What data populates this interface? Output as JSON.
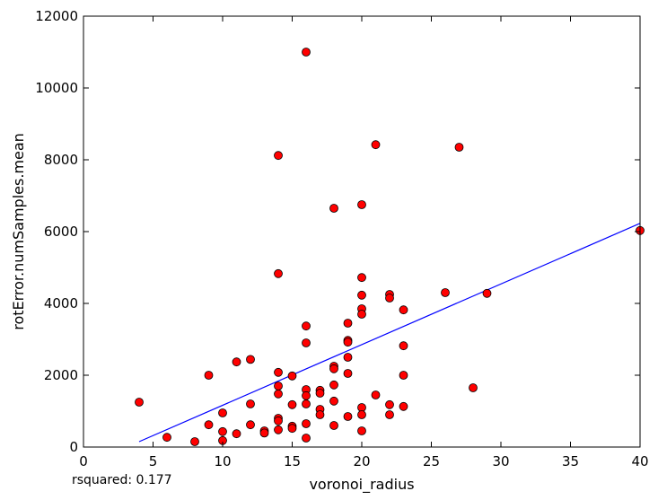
{
  "chart_data": {
    "type": "scatter",
    "title": "",
    "xlabel": "voronoi_radius",
    "ylabel": "rotError.numSamples.mean",
    "xlim": [
      0,
      40
    ],
    "ylim": [
      0,
      12000
    ],
    "xticks": [
      0,
      5,
      10,
      15,
      20,
      25,
      30,
      35,
      40
    ],
    "yticks": [
      0,
      2000,
      4000,
      6000,
      8000,
      10000,
      12000
    ],
    "grid": false,
    "legend": "none",
    "point_color": "#ff0000",
    "line_color": "#0000ff",
    "fit_line": {
      "x": [
        4,
        40
      ],
      "y": [
        150,
        6230
      ]
    },
    "points": [
      {
        "x": 4,
        "y": 1250
      },
      {
        "x": 6,
        "y": 270
      },
      {
        "x": 8,
        "y": 150
      },
      {
        "x": 9,
        "y": 2000
      },
      {
        "x": 9,
        "y": 620
      },
      {
        "x": 10,
        "y": 950
      },
      {
        "x": 10,
        "y": 430
      },
      {
        "x": 10,
        "y": 180
      },
      {
        "x": 11,
        "y": 2370
      },
      {
        "x": 11,
        "y": 370
      },
      {
        "x": 12,
        "y": 2440
      },
      {
        "x": 12,
        "y": 1200
      },
      {
        "x": 12,
        "y": 620
      },
      {
        "x": 13,
        "y": 450
      },
      {
        "x": 13,
        "y": 390
      },
      {
        "x": 14,
        "y": 8120
      },
      {
        "x": 14,
        "y": 4830
      },
      {
        "x": 14,
        "y": 2080
      },
      {
        "x": 14,
        "y": 1700
      },
      {
        "x": 14,
        "y": 1480
      },
      {
        "x": 14,
        "y": 800
      },
      {
        "x": 14,
        "y": 730
      },
      {
        "x": 14,
        "y": 480
      },
      {
        "x": 15,
        "y": 1980
      },
      {
        "x": 15,
        "y": 1180
      },
      {
        "x": 15,
        "y": 580
      },
      {
        "x": 15,
        "y": 520
      },
      {
        "x": 16,
        "y": 11000
      },
      {
        "x": 16,
        "y": 3370
      },
      {
        "x": 16,
        "y": 2900
      },
      {
        "x": 16,
        "y": 1600
      },
      {
        "x": 16,
        "y": 1430
      },
      {
        "x": 16,
        "y": 1200
      },
      {
        "x": 16,
        "y": 650
      },
      {
        "x": 16,
        "y": 250
      },
      {
        "x": 17,
        "y": 1580
      },
      {
        "x": 17,
        "y": 1500
      },
      {
        "x": 17,
        "y": 1050
      },
      {
        "x": 17,
        "y": 900
      },
      {
        "x": 18,
        "y": 6650
      },
      {
        "x": 18,
        "y": 2250
      },
      {
        "x": 18,
        "y": 2180
      },
      {
        "x": 18,
        "y": 1730
      },
      {
        "x": 18,
        "y": 1280
      },
      {
        "x": 18,
        "y": 600
      },
      {
        "x": 19,
        "y": 3450
      },
      {
        "x": 19,
        "y": 2970
      },
      {
        "x": 19,
        "y": 2920
      },
      {
        "x": 19,
        "y": 2500
      },
      {
        "x": 19,
        "y": 2050
      },
      {
        "x": 19,
        "y": 850
      },
      {
        "x": 20,
        "y": 6750
      },
      {
        "x": 20,
        "y": 4720
      },
      {
        "x": 20,
        "y": 4230
      },
      {
        "x": 20,
        "y": 3850
      },
      {
        "x": 20,
        "y": 3700
      },
      {
        "x": 20,
        "y": 1100
      },
      {
        "x": 20,
        "y": 900
      },
      {
        "x": 20,
        "y": 450
      },
      {
        "x": 21,
        "y": 8420
      },
      {
        "x": 21,
        "y": 1450
      },
      {
        "x": 22,
        "y": 4250
      },
      {
        "x": 22,
        "y": 4150
      },
      {
        "x": 22,
        "y": 1180
      },
      {
        "x": 22,
        "y": 900
      },
      {
        "x": 23,
        "y": 3820
      },
      {
        "x": 23,
        "y": 2820
      },
      {
        "x": 23,
        "y": 2000
      },
      {
        "x": 23,
        "y": 1130
      },
      {
        "x": 26,
        "y": 4300
      },
      {
        "x": 27,
        "y": 8350
      },
      {
        "x": 28,
        "y": 1650
      },
      {
        "x": 29,
        "y": 4280
      },
      {
        "x": 40,
        "y": 6030
      }
    ]
  },
  "annotation": {
    "text": "rsquared: 0.177"
  }
}
